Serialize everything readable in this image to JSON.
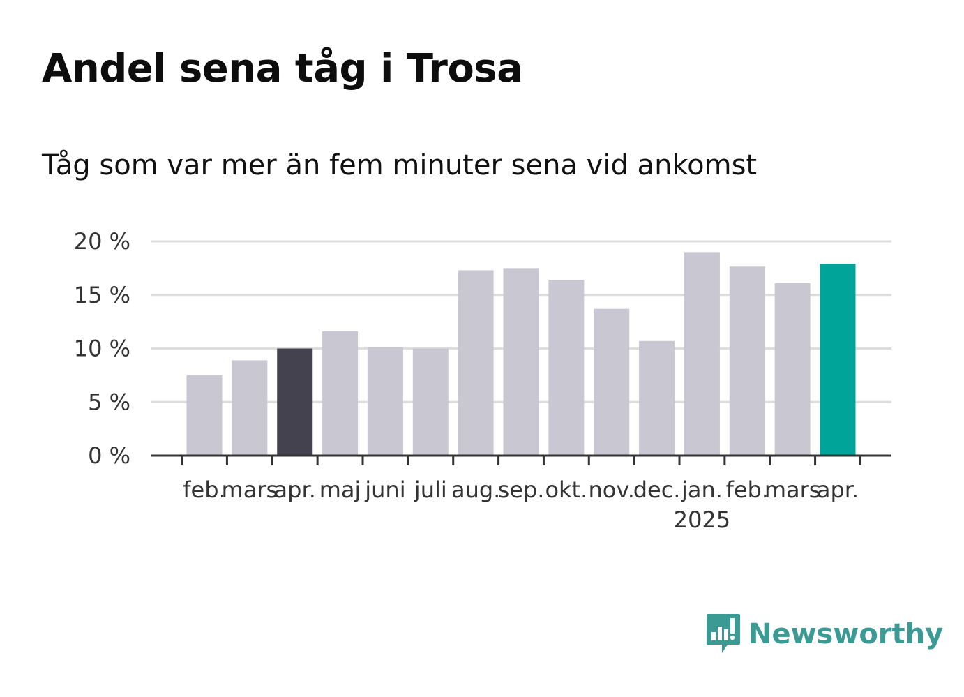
{
  "title": "Andel sena tåg i Trosa",
  "subtitle": "Tåg som var mer än fem minuter sena vid ankomst",
  "logo_text": "Newsworthy",
  "logo_icon": "bar-chart-speech-bubble-icon",
  "colors": {
    "bar_default": "#c9c8d2",
    "bar_highlight_past": "#43424e",
    "bar_highlight_current": "#00a498",
    "grid": "#dddddd",
    "axis": "#333333",
    "logo": "#3c9a95"
  },
  "chart_data": {
    "type": "bar",
    "title": "Andel sena tåg i Trosa",
    "subtitle": "Tåg som var mer än fem minuter sena vid ankomst",
    "xlabel": "",
    "ylabel": "",
    "categories": [
      "feb.",
      "mars",
      "apr.",
      "maj",
      "juni",
      "juli",
      "aug.",
      "sep.",
      "okt.",
      "nov.",
      "dec.",
      "jan.",
      "feb.",
      "mars",
      "apr."
    ],
    "year_labels": [
      "",
      "",
      "",
      "",
      "",
      "",
      "",
      "",
      "",
      "",
      "",
      "2025",
      "",
      "",
      ""
    ],
    "values": [
      7.5,
      8.9,
      10.0,
      11.6,
      10.1,
      10.0,
      17.3,
      17.5,
      16.4,
      13.7,
      10.7,
      19.0,
      17.7,
      16.1,
      17.9
    ],
    "highlight": [
      "default",
      "default",
      "past",
      "default",
      "default",
      "default",
      "default",
      "default",
      "default",
      "default",
      "default",
      "default",
      "default",
      "default",
      "current"
    ],
    "ylim": [
      0,
      20
    ],
    "yticks": [
      0,
      5,
      10,
      15,
      20
    ],
    "ytick_labels": [
      "0 %",
      "5 %",
      "10 %",
      "15 %",
      "20 %"
    ],
    "grid": true,
    "legend": "none"
  }
}
